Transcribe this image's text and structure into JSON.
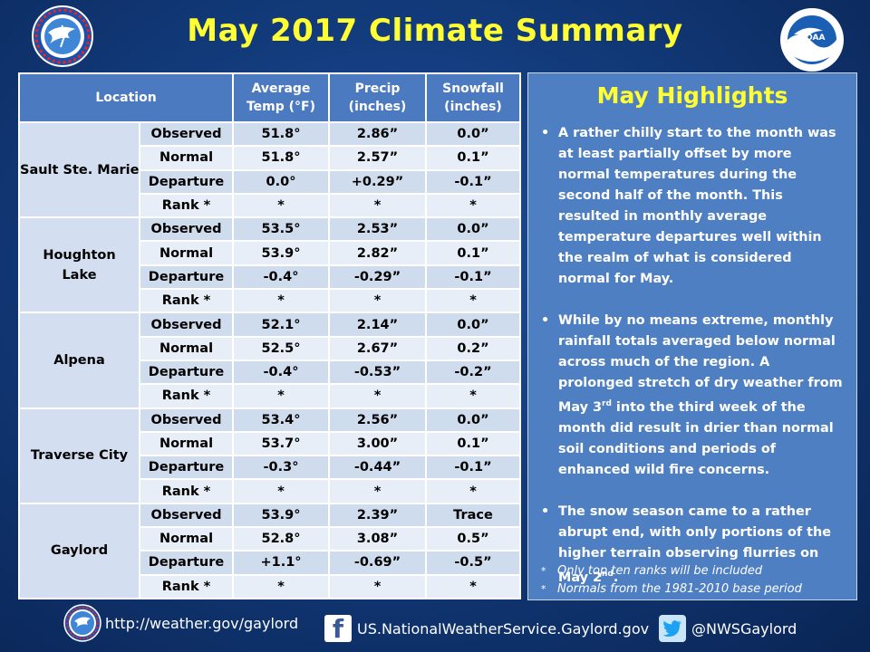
{
  "title": "May 2017 Climate Summary",
  "table": {
    "headers": {
      "location": "Location",
      "temp_line1": "Average",
      "temp_line2": "Temp (°F)",
      "precip_line1": "Precip",
      "precip_line2": "(inches)",
      "snow_line1": "Snowfall",
      "snow_line2": "(inches)"
    },
    "stations": [
      {
        "name_line1": "Sault Ste. Marie",
        "name_line2": "",
        "rows": [
          {
            "label": "Observed",
            "temp": "51.8°",
            "precip": "2.86”",
            "snow": "0.0”"
          },
          {
            "label": "Normal",
            "temp": "51.8°",
            "precip": "2.57”",
            "snow": "0.1”"
          },
          {
            "label": "Departure",
            "temp": "0.0°",
            "precip": "+0.29”",
            "snow": "-0.1”"
          },
          {
            "label": "Rank *",
            "temp": "*",
            "precip": "*",
            "snow": "*"
          }
        ]
      },
      {
        "name_line1": "Houghton",
        "name_line2": "Lake",
        "rows": [
          {
            "label": "Observed",
            "temp": "53.5°",
            "precip": "2.53”",
            "snow": "0.0”"
          },
          {
            "label": "Normal",
            "temp": "53.9°",
            "precip": "2.82”",
            "snow": "0.1”"
          },
          {
            "label": "Departure",
            "temp": "-0.4°",
            "precip": "-0.29”",
            "snow": "-0.1”"
          },
          {
            "label": "Rank *",
            "temp": "*",
            "precip": "*",
            "snow": "*"
          }
        ]
      },
      {
        "name_line1": "Alpena",
        "name_line2": "",
        "rows": [
          {
            "label": "Observed",
            "temp": "52.1°",
            "precip": "2.14”",
            "snow": "0.0”"
          },
          {
            "label": "Normal",
            "temp": "52.5°",
            "precip": "2.67”",
            "snow": "0.2”"
          },
          {
            "label": "Departure",
            "temp": "-0.4°",
            "precip": "-0.53”",
            "snow": "-0.2”"
          },
          {
            "label": "Rank *",
            "temp": "*",
            "precip": "*",
            "snow": "*"
          }
        ]
      },
      {
        "name_line1": "Traverse City",
        "name_line2": "",
        "rows": [
          {
            "label": "Observed",
            "temp": "53.4°",
            "precip": "2.56”",
            "snow": "0.0”"
          },
          {
            "label": "Normal",
            "temp": "53.7°",
            "precip": "3.00”",
            "snow": "0.1”"
          },
          {
            "label": "Departure",
            "temp": "-0.3°",
            "precip": "-0.44”",
            "snow": "-0.1”"
          },
          {
            "label": "Rank *",
            "temp": "*",
            "precip": "*",
            "snow": "*"
          }
        ]
      },
      {
        "name_line1": "Gaylord",
        "name_line2": "",
        "rows": [
          {
            "label": "Observed",
            "temp": "53.9°",
            "precip": "2.39”",
            "snow": "Trace"
          },
          {
            "label": "Normal",
            "temp": "52.8°",
            "precip": "3.08”",
            "snow": "0.5”"
          },
          {
            "label": "Departure",
            "temp": "+1.1°",
            "precip": "-0.69”",
            "snow": "-0.5”"
          },
          {
            "label": "Rank *",
            "temp": "*",
            "precip": "*",
            "snow": "*"
          }
        ]
      }
    ]
  },
  "highlights": {
    "title": "May Highlights",
    "bullet_char": "•",
    "b1": "A rather chilly start to the month was at least partially offset by more normal temperatures during the second half of the month.  This resulted in monthly average temperature departures well within the realm of what is considered normal for May.",
    "b2_pre": "While by no means extreme, monthly rainfall totals averaged below normal across much of the region.  A prolonged stretch of dry weather  from May 3",
    "b2_sup": "rd",
    "b2_post": " into the third week of the month did result in drier than normal soil conditions and periods of enhanced wild fire concerns.",
    "b3_pre": "The snow season came to a rather abrupt end, with only portions of the higher terrain observing flurries on May 2",
    "b3_sup": "nd",
    "b3_post": ".",
    "note_star": "*",
    "note1": "Only top ten ranks will be included",
    "note2": "Normals from the 1981-2010 base period"
  },
  "footer": {
    "website": "http://weather.gov/gaylord",
    "facebook": "US.NationalWeatherService.Gaylord.gov",
    "twitter": "@NWSGaylord"
  },
  "logos": {
    "nws_text": "NATIONAL WEATHER SERVICE",
    "noaa_text": "NOAA"
  },
  "colors": {
    "title_yellow": "#ffff33",
    "header_blue": "#4c7ac0",
    "panel_blue": "#4f7fc3",
    "cell_light": "#e8eef7",
    "cell_mid": "#cfdcee"
  }
}
